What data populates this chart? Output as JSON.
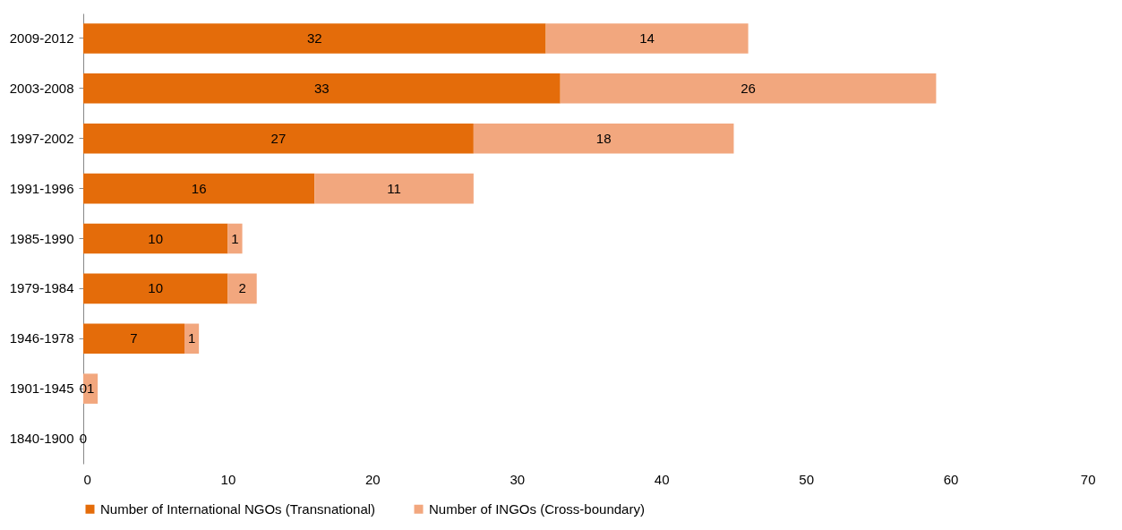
{
  "chart_data": {
    "type": "bar",
    "orientation": "horizontal",
    "stacked": true,
    "categories": [
      "2009-2012",
      "2003-2008",
      "1997-2002",
      "1991-1996",
      "1985-1990",
      "1979-1984",
      "1946-1978",
      "1901-1945",
      "1840-1900"
    ],
    "series": [
      {
        "name": "Number of International NGOs (Transnational)",
        "color": "#e46c0a",
        "values": [
          32,
          33,
          27,
          16,
          10,
          10,
          7,
          0,
          0
        ]
      },
      {
        "name": "Number of  INGOs (Cross-boundary)",
        "color": "#f2a77e",
        "values": [
          14,
          26,
          18,
          11,
          1,
          2,
          1,
          1,
          null
        ]
      }
    ],
    "xlim": [
      0,
      70
    ],
    "xticks": [
      0,
      10,
      20,
      30,
      40,
      50,
      60,
      70
    ],
    "grid": false,
    "legend": "bottom",
    "data_labels": true
  }
}
